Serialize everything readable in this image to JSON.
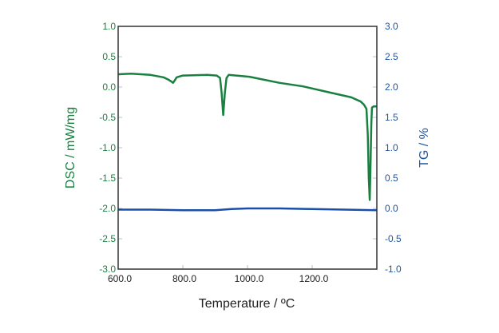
{
  "chart_data": {
    "type": "line",
    "xlabel": "Temperature / ºC",
    "ylabel_left": "DSC / mW/mg",
    "ylabel_right": "TG / %",
    "xlim": [
      600,
      1400
    ],
    "ylim_left": [
      -3.0,
      1.0
    ],
    "ylim_right": [
      -1.0,
      3.0
    ],
    "x_ticks": [
      "600.0",
      "800.0",
      "1000.0",
      "1200.0"
    ],
    "x_tick_values": [
      600,
      800,
      1000,
      1200
    ],
    "left_ticks": [
      "1.0",
      "0.5",
      "0.0",
      "-0.5",
      "-1.0",
      "-1.5",
      "-2.0",
      "-2.5",
      "-3.0"
    ],
    "right_ticks": [
      "3.0",
      "2.5",
      "2.0",
      "1.5",
      "1.0",
      "0.5",
      "0.0",
      "-0.5",
      "-1.0"
    ],
    "grid": false,
    "colors": {
      "dsc": "#1a8040",
      "tg": "#1a4fa8",
      "left_axis": "#1a8040",
      "right_axis": "#1a56a8"
    },
    "series": [
      {
        "name": "DSC",
        "axis": "left",
        "x": [
          600,
          640,
          700,
          740,
          756,
          765,
          770,
          775,
          781,
          800,
          875,
          905,
          915,
          920,
          925,
          930,
          935,
          942,
          1006,
          1098,
          1172,
          1247,
          1321,
          1350,
          1360,
          1368,
          1372,
          1375,
          1378,
          1380,
          1383,
          1385,
          1390,
          1400
        ],
        "y": [
          0.21,
          0.22,
          0.2,
          0.16,
          0.12,
          0.09,
          0.07,
          0.11,
          0.16,
          0.19,
          0.2,
          0.19,
          0.15,
          -0.1,
          -0.46,
          -0.1,
          0.15,
          0.2,
          0.17,
          0.07,
          0.01,
          -0.08,
          -0.17,
          -0.24,
          -0.29,
          -0.36,
          -0.8,
          -1.5,
          -1.86,
          -1.4,
          -0.6,
          -0.34,
          -0.32,
          -0.32
        ]
      },
      {
        "name": "TG",
        "axis": "right",
        "x": [
          600,
          700,
          800,
          900,
          950,
          1000,
          1100,
          1200,
          1300,
          1400
        ],
        "y": [
          -0.02,
          -0.02,
          -0.03,
          -0.03,
          -0.01,
          0.0,
          0.0,
          -0.01,
          -0.02,
          -0.03
        ]
      }
    ]
  }
}
